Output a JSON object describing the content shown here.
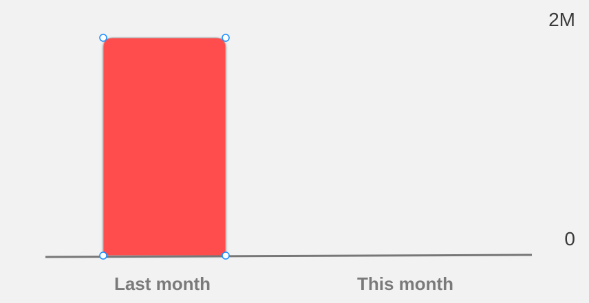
{
  "chart_data": {
    "type": "bar",
    "categories": [
      "Last month",
      "This month"
    ],
    "series": [
      {
        "values": [
          2000000,
          0
        ]
      }
    ],
    "y_ticks": [
      "2M",
      "0"
    ],
    "ylim": [
      0,
      2000000
    ],
    "y_axis_side": "right",
    "grid": false,
    "selected_category": "Last month",
    "bar_color": "#ff4d4d",
    "baseline_color": "#777777",
    "handle_color": "#1e90ff"
  }
}
